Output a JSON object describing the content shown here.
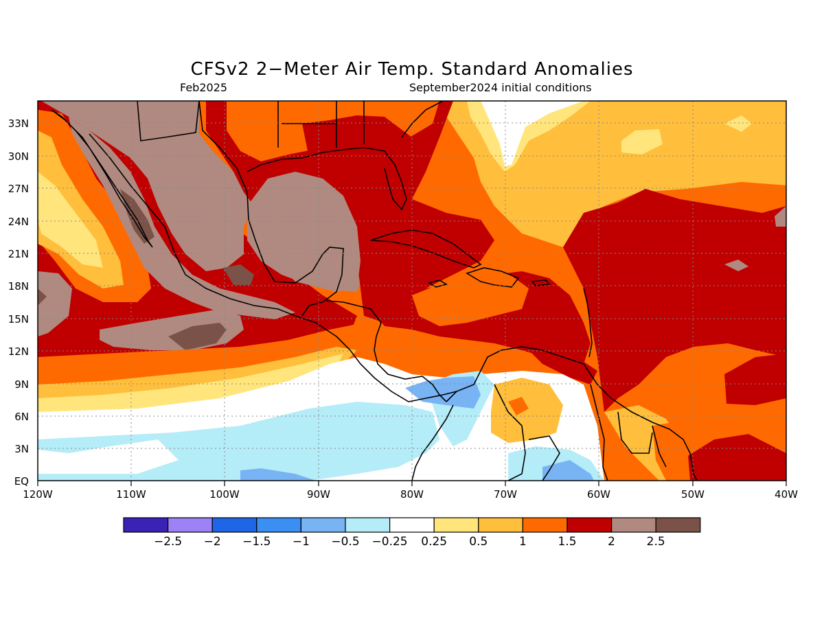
{
  "title": "CFSv2 2−Meter Air Temp. Standard Anomalies",
  "valid_month": "Feb2025",
  "init_text": "September2024 initial conditions",
  "map": {
    "lon_labels": [
      "120W",
      "110W",
      "100W",
      "90W",
      "80W",
      "70W",
      "60W",
      "50W",
      "40W"
    ],
    "lat_labels": [
      "EQ",
      "3N",
      "6N",
      "9N",
      "12N",
      "15N",
      "18N",
      "21N",
      "24N",
      "27N",
      "30N",
      "33N"
    ],
    "region": "Gulf of Mexico, Caribbean, Central America, northern South America"
  },
  "colorbar": {
    "labels": [
      "−2.5",
      "−2",
      "−1.5",
      "−1",
      "−0.5",
      "−0.25",
      "0.25",
      "0.5",
      "1",
      "1.5",
      "2",
      "2.5"
    ],
    "colors": [
      "#3a22b4",
      "#9d82f5",
      "#1f66e6",
      "#3b8ff2",
      "#78b4f4",
      "#b4ecf8",
      "#ffffff",
      "#ffe57c",
      "#ffbe3c",
      "#ff6a00",
      "#c00000",
      "#b08a80",
      "#7a5248"
    ]
  },
  "palette": {
    "white": "#ffffff",
    "lightblue": "#b4ecf8",
    "blue": "#78b4f4",
    "midblue": "#3b8ff2",
    "yellow": "#ffe57c",
    "gold": "#ffbe3c",
    "orange": "#ff6a00",
    "red": "#c00000",
    "taupe": "#b08a80",
    "brown": "#7a5248"
  }
}
